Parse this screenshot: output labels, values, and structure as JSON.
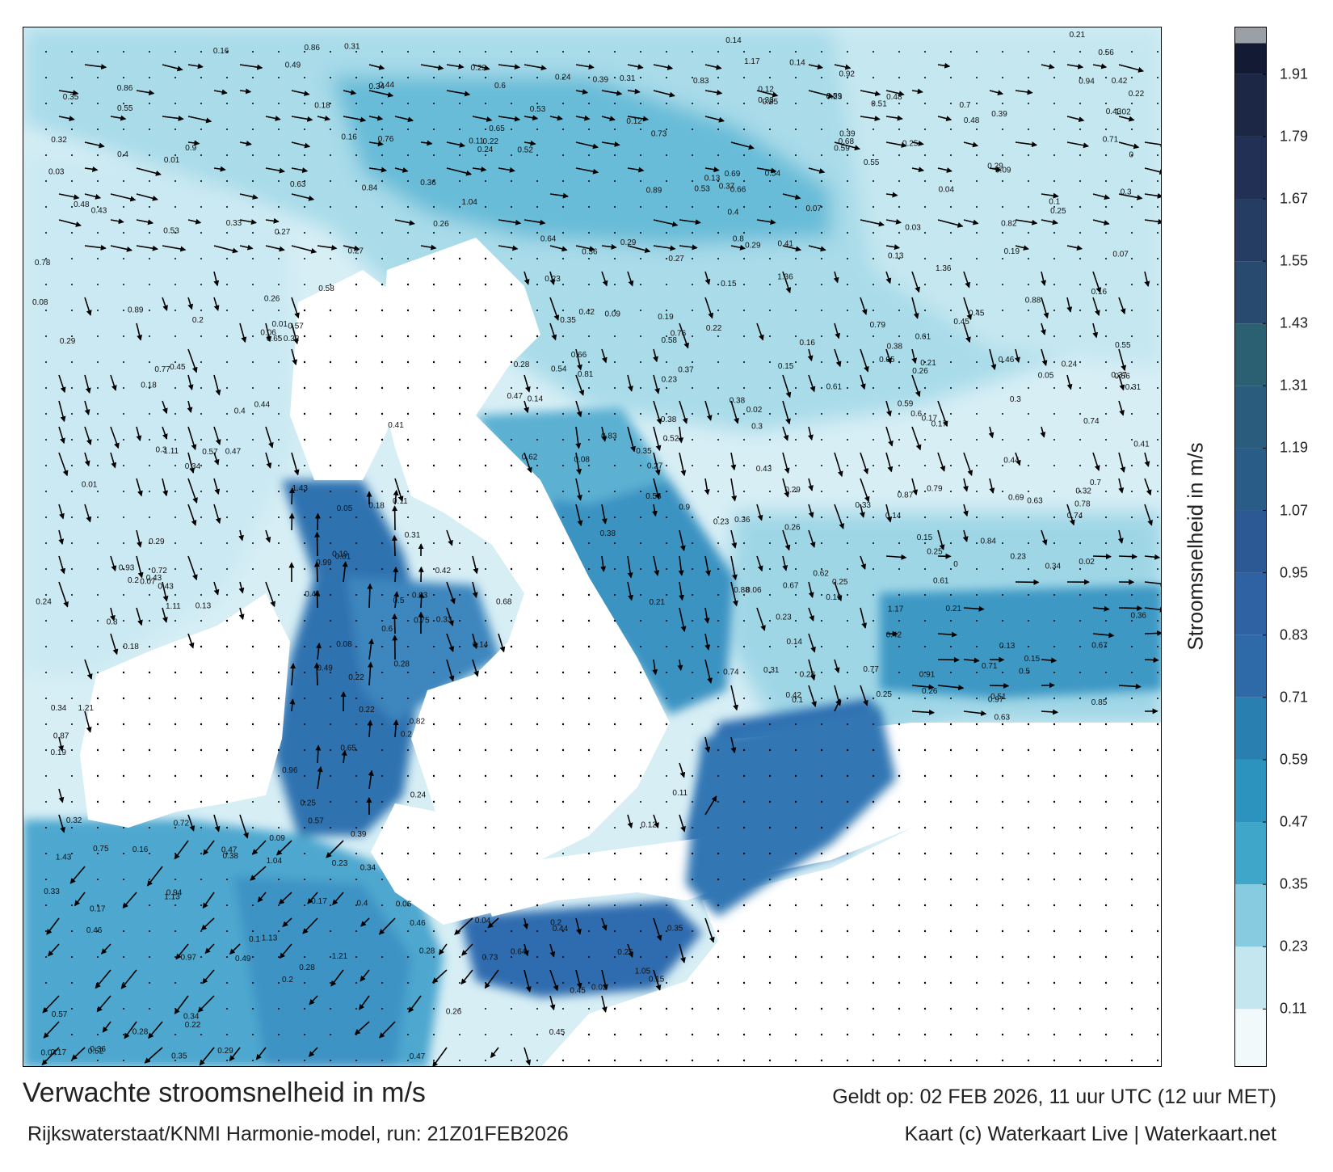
{
  "title": "Verwachte stroomsnelheid in m/s",
  "subtitle": "Rijkswaterstaat/KNMI Harmonie-model, run: 21Z01FEB2026",
  "valid_time": "Geldt op: 02 FEB 2026, 11 uur UTC (12 uur MET)",
  "credit": "Kaart (c) Waterkaart Live | Waterkaart.net",
  "colorbar": {
    "title": "Stroomsnelheid in m/s",
    "range": [
      0,
      2.0
    ],
    "ticks": [
      "0.11",
      "0.23",
      "0.35",
      "0.47",
      "0.59",
      "0.71",
      "0.83",
      "0.95",
      "1.07",
      "1.19",
      "1.31",
      "1.43",
      "1.55",
      "1.67",
      "1.79",
      "1.91"
    ],
    "tick_values": [
      0.11,
      0.23,
      0.35,
      0.47,
      0.59,
      0.71,
      0.83,
      0.95,
      1.07,
      1.19,
      1.31,
      1.43,
      1.55,
      1.67,
      1.79,
      1.91
    ],
    "bands": [
      {
        "from": 0.0,
        "to": 0.11,
        "color": "#f2f9fb"
      },
      {
        "from": 0.11,
        "to": 0.23,
        "color": "#c3e6ef"
      },
      {
        "from": 0.23,
        "to": 0.35,
        "color": "#86cbe0"
      },
      {
        "from": 0.35,
        "to": 0.47,
        "color": "#3fa5c9"
      },
      {
        "from": 0.47,
        "to": 0.59,
        "color": "#2b93bd"
      },
      {
        "from": 0.59,
        "to": 0.71,
        "color": "#2a7fb1"
      },
      {
        "from": 0.71,
        "to": 0.83,
        "color": "#2f6aa8"
      },
      {
        "from": 0.83,
        "to": 0.95,
        "color": "#2e62a3"
      },
      {
        "from": 0.95,
        "to": 1.07,
        "color": "#2c5994"
      },
      {
        "from": 1.07,
        "to": 1.19,
        "color": "#2a5c88"
      },
      {
        "from": 1.19,
        "to": 1.31,
        "color": "#2a5c7e"
      },
      {
        "from": 1.31,
        "to": 1.43,
        "color": "#2b5f72"
      },
      {
        "from": 1.43,
        "to": 1.55,
        "color": "#284a6e"
      },
      {
        "from": 1.55,
        "to": 1.67,
        "color": "#263d63"
      },
      {
        "from": 1.67,
        "to": 1.79,
        "color": "#213054"
      },
      {
        "from": 1.79,
        "to": 1.91,
        "color": "#1c2645"
      },
      {
        "from": 1.91,
        "to": 1.97,
        "color": "#131a33"
      },
      {
        "from": 1.97,
        "to": 2.0,
        "color": "#9aa0a6"
      }
    ]
  },
  "colors": {
    "land": "#ffffff",
    "sea_low": "#e9f5f9",
    "sea_mid": "#8fd0e3",
    "channel": "#2b72b2",
    "deep_channel": "#2f5ea0",
    "arrow": "#000000"
  },
  "value_labels": [
    {
      "text": "0.16"
    },
    {
      "text": "0.15"
    },
    {
      "text": "0.14"
    },
    {
      "text": "0.17"
    },
    {
      "text": "0.16"
    },
    {
      "text": "0.18"
    },
    {
      "text": "0.17"
    },
    {
      "text": "0.23"
    },
    {
      "text": "0.23"
    },
    {
      "text": "0.24"
    },
    {
      "text": "0.25"
    },
    {
      "text": "0.25"
    },
    {
      "text": "0.28"
    },
    {
      "text": "0.29"
    },
    {
      "text": "0.39"
    },
    {
      "text": "0.23"
    },
    {
      "text": "0.3"
    },
    {
      "text": "0.31"
    },
    {
      "text": "0.38"
    },
    {
      "text": "0.52"
    },
    {
      "text": "0.57"
    },
    {
      "text": "0.6"
    },
    {
      "text": "0.64"
    },
    {
      "text": "0.63"
    },
    {
      "text": "0.65"
    },
    {
      "text": "0.74"
    },
    {
      "text": "0.78"
    },
    {
      "text": "0.61"
    },
    {
      "text": "0.56"
    },
    {
      "text": "0.45"
    },
    {
      "text": "0.41"
    },
    {
      "text": "0.43"
    },
    {
      "text": "0.47"
    },
    {
      "text": "0.32"
    },
    {
      "text": "0.23"
    },
    {
      "text": "0.16"
    },
    {
      "text": "0.14"
    },
    {
      "text": "0.08"
    },
    {
      "text": "0.12"
    },
    {
      "text": "0.09"
    },
    {
      "text": "0.13"
    },
    {
      "text": "0.11"
    },
    {
      "text": "0.14"
    },
    {
      "text": "0.2"
    },
    {
      "text": "0.19"
    },
    {
      "text": "0.24"
    },
    {
      "text": "0.22"
    },
    {
      "text": "0.23"
    },
    {
      "text": "0.29"
    },
    {
      "text": "0.26"
    },
    {
      "text": "0.17"
    },
    {
      "text": "0.15"
    },
    {
      "text": "0.15"
    },
    {
      "text": "0.21"
    },
    {
      "text": "0.28"
    },
    {
      "text": "0.29"
    },
    {
      "text": "0.34"
    },
    {
      "text": "0.42"
    },
    {
      "text": "0.41"
    },
    {
      "text": "0.45"
    },
    {
      "text": "0.25"
    },
    {
      "text": "0.28"
    },
    {
      "text": "0.23"
    },
    {
      "text": "0.2"
    },
    {
      "text": "0.22"
    },
    {
      "text": "0.29"
    },
    {
      "text": "0.34"
    },
    {
      "text": "0.47"
    },
    {
      "text": "0.35"
    },
    {
      "text": "0.25"
    },
    {
      "text": "0.26"
    },
    {
      "text": "0.19"
    },
    {
      "text": "0.22"
    },
    {
      "text": "0.27"
    },
    {
      "text": "0.31"
    },
    {
      "text": "0.32"
    },
    {
      "text": "0.33"
    },
    {
      "text": "0.45"
    },
    {
      "text": "0.49"
    },
    {
      "text": "0.42"
    },
    {
      "text": "0.43"
    },
    {
      "text": "0.44"
    },
    {
      "text": "0.51"
    },
    {
      "text": "0.36"
    },
    {
      "text": "0.48"
    },
    {
      "text": "0.35"
    },
    {
      "text": "0.41"
    },
    {
      "text": "0.4"
    },
    {
      "text": "0.29"
    },
    {
      "text": "0.34"
    },
    {
      "text": "0.33"
    },
    {
      "text": "0.43"
    },
    {
      "text": "0.38"
    },
    {
      "text": "0.18"
    },
    {
      "text": "0.19"
    },
    {
      "text": "0.22"
    },
    {
      "text": "0.14"
    },
    {
      "text": "0.13"
    },
    {
      "text": "0.21"
    },
    {
      "text": "0.2"
    },
    {
      "text": "0.23"
    },
    {
      "text": "0.26"
    },
    {
      "text": "0.36"
    },
    {
      "text": "0.35"
    },
    {
      "text": "0.37"
    },
    {
      "text": "0.4"
    },
    {
      "text": "0.33"
    },
    {
      "text": "0.39"
    },
    {
      "text": "0.38"
    },
    {
      "text": "0.43"
    },
    {
      "text": "0.42"
    },
    {
      "text": "0.44"
    },
    {
      "text": "0.46"
    },
    {
      "text": "0.49"
    },
    {
      "text": "0.53"
    },
    {
      "text": "0.55"
    },
    {
      "text": "0.57"
    },
    {
      "text": "0.59"
    },
    {
      "text": "0.61"
    },
    {
      "text": "0.62"
    },
    {
      "text": "0.66"
    },
    {
      "text": "0.68"
    },
    {
      "text": "0.71"
    },
    {
      "text": "0.72"
    },
    {
      "text": "0.74"
    },
    {
      "text": "0.76"
    },
    {
      "text": "0.79"
    },
    {
      "text": "0.8"
    },
    {
      "text": "0.81"
    },
    {
      "text": "0.83"
    },
    {
      "text": "0.84"
    },
    {
      "text": "0.85"
    },
    {
      "text": "0.86"
    },
    {
      "text": "0.87"
    },
    {
      "text": "0.88"
    },
    {
      "text": "0.89"
    },
    {
      "text": "0.9"
    },
    {
      "text": "0.93"
    },
    {
      "text": "0.94"
    },
    {
      "text": "0.97"
    },
    {
      "text": "1.02"
    },
    {
      "text": "1.04"
    },
    {
      "text": "1.05"
    },
    {
      "text": "1.11"
    },
    {
      "text": "1.13"
    },
    {
      "text": "1.17"
    },
    {
      "text": "1.21"
    },
    {
      "text": "1.36"
    },
    {
      "text": "1.43"
    },
    {
      "text": "0.06"
    },
    {
      "text": "0.07"
    },
    {
      "text": "0.05"
    },
    {
      "text": "0.04"
    },
    {
      "text": "0.03"
    },
    {
      "text": "0.02"
    },
    {
      "text": "0.01"
    },
    {
      "text": "0"
    },
    {
      "text": "0.1"
    },
    {
      "text": "0.27"
    },
    {
      "text": "0.3"
    },
    {
      "text": "0.26"
    },
    {
      "text": "0.24"
    },
    {
      "text": "0.28"
    },
    {
      "text": "0.25"
    },
    {
      "text": "0.31"
    },
    {
      "text": "0.32"
    },
    {
      "text": "0.37"
    },
    {
      "text": "0.36"
    },
    {
      "text": "0.34"
    },
    {
      "text": "0.33"
    },
    {
      "text": "0.47"
    },
    {
      "text": "0.46"
    },
    {
      "text": "0.48"
    },
    {
      "text": "0.5"
    },
    {
      "text": "0.52"
    },
    {
      "text": "0.54"
    },
    {
      "text": "0.56"
    },
    {
      "text": "0.58"
    },
    {
      "text": "0.6"
    },
    {
      "text": "0.65"
    },
    {
      "text": "0.69"
    },
    {
      "text": "0.7"
    },
    {
      "text": "0.73"
    },
    {
      "text": "0.75"
    },
    {
      "text": "0.77"
    },
    {
      "text": "0.78"
    },
    {
      "text": "0.82"
    },
    {
      "text": "0.91"
    },
    {
      "text": "0.67"
    },
    {
      "text": "0.63"
    },
    {
      "text": "0.64"
    },
    {
      "text": "0.59"
    },
    {
      "text": "0.57"
    },
    {
      "text": "0.55"
    },
    {
      "text": "0.53"
    },
    {
      "text": "0.51"
    },
    {
      "text": "0.49"
    },
    {
      "text": "0.45"
    },
    {
      "text": "0.44"
    },
    {
      "text": "0.42"
    },
    {
      "text": "0.41"
    },
    {
      "text": "0.39"
    },
    {
      "text": "0.35"
    },
    {
      "text": "0.31"
    },
    {
      "text": "0.29"
    },
    {
      "text": "0.27"
    },
    {
      "text": "0.25"
    },
    {
      "text": "0.24"
    },
    {
      "text": "0.22"
    },
    {
      "text": "0.21"
    },
    {
      "text": "0.19"
    },
    {
      "text": "0.18"
    },
    {
      "text": "0.17"
    },
    {
      "text": "0.16"
    },
    {
      "text": "0.15"
    },
    {
      "text": "0.14"
    },
    {
      "text": "0.13"
    },
    {
      "text": "0.12"
    },
    {
      "text": "0.11"
    },
    {
      "text": "0.1"
    },
    {
      "text": "0.09"
    },
    {
      "text": "0.08"
    },
    {
      "text": "0.07"
    },
    {
      "text": "0.06"
    },
    {
      "text": "0.05"
    },
    {
      "text": "0.04"
    },
    {
      "text": "0.03"
    },
    {
      "text": "0.02"
    },
    {
      "text": "0.01"
    },
    {
      "text": "0"
    },
    {
      "text": "0.2"
    },
    {
      "text": "0.26"
    },
    {
      "text": "0.28"
    },
    {
      "text": "0.3"
    },
    {
      "text": "0.32"
    },
    {
      "text": "0.34"
    },
    {
      "text": "0.36"
    },
    {
      "text": "0.38"
    },
    {
      "text": "0.4"
    },
    {
      "text": "0.43"
    },
    {
      "text": "0.47"
    },
    {
      "text": "0.46"
    },
    {
      "text": "0.48"
    },
    {
      "text": "0.52"
    },
    {
      "text": "0.54"
    },
    {
      "text": "0.56"
    },
    {
      "text": "0.58"
    },
    {
      "text": "0.6"
    },
    {
      "text": "0.62"
    },
    {
      "text": "0.66"
    },
    {
      "text": "0.68"
    },
    {
      "text": "0.7"
    },
    {
      "text": "0.72"
    },
    {
      "text": "0.74"
    },
    {
      "text": "0.76"
    },
    {
      "text": "0.81"
    },
    {
      "text": "0.83"
    },
    {
      "text": "0.85"
    },
    {
      "text": "0.87"
    },
    {
      "text": "0.89"
    },
    {
      "text": "0.23"
    },
    {
      "text": "0.37"
    },
    {
      "text": "0.44"
    },
    {
      "text": "0.39"
    },
    {
      "text": "0.29"
    },
    {
      "text": "0.27"
    },
    {
      "text": "0.28"
    },
    {
      "text": "0.26"
    },
    {
      "text": "0.25"
    },
    {
      "text": "0.22"
    },
    {
      "text": "0.21"
    },
    {
      "text": "0.19"
    },
    {
      "text": "0.17"
    },
    {
      "text": "0.16"
    },
    {
      "text": "0.15"
    },
    {
      "text": "0.14"
    },
    {
      "text": "0.13"
    },
    {
      "text": "0.12"
    },
    {
      "text": "0.11"
    },
    {
      "text": "0.1"
    },
    {
      "text": "0.09"
    },
    {
      "text": "0.08"
    },
    {
      "text": "0.07"
    },
    {
      "text": "0.06"
    },
    {
      "text": "0.05"
    },
    {
      "text": "0.04"
    },
    {
      "text": "0.03"
    },
    {
      "text": "0.02"
    },
    {
      "text": "0.01"
    },
    {
      "text": "0.18"
    },
    {
      "text": "0.2"
    },
    {
      "text": "0.24"
    },
    {
      "text": "0.3"
    },
    {
      "text": "0.31"
    },
    {
      "text": "0.33"
    },
    {
      "text": "0.34"
    },
    {
      "text": "0.35"
    },
    {
      "text": "0.36"
    },
    {
      "text": "0.38"
    },
    {
      "text": "0.4"
    },
    {
      "text": "0.42"
    },
    {
      "text": "0.45"
    },
    {
      "text": "0.5"
    },
    {
      "text": "0.53"
    },
    {
      "text": "0.55"
    },
    {
      "text": "0.57"
    },
    {
      "text": "0.59"
    },
    {
      "text": "0.61"
    },
    {
      "text": "0.63"
    },
    {
      "text": "0.65"
    },
    {
      "text": "0.67"
    },
    {
      "text": "0.69"
    },
    {
      "text": "0.71"
    },
    {
      "text": "0.73"
    },
    {
      "text": "0.75"
    },
    {
      "text": "0.77"
    },
    {
      "text": "0.79"
    },
    {
      "text": "0.8"
    },
    {
      "text": "0.82"
    },
    {
      "text": "0.84"
    },
    {
      "text": "0.86"
    },
    {
      "text": "0.88"
    },
    {
      "text": "0.9"
    },
    {
      "text": "0.92"
    },
    {
      "text": "0.94"
    },
    {
      "text": "0.96"
    },
    {
      "text": "0.97"
    },
    {
      "text": "1.04"
    },
    {
      "text": "1.11"
    },
    {
      "text": "1.13"
    },
    {
      "text": "1.17"
    },
    {
      "text": "1.21"
    },
    {
      "text": "1.36"
    },
    {
      "text": "1.43"
    },
    {
      "text": "0.99"
    }
  ]
}
